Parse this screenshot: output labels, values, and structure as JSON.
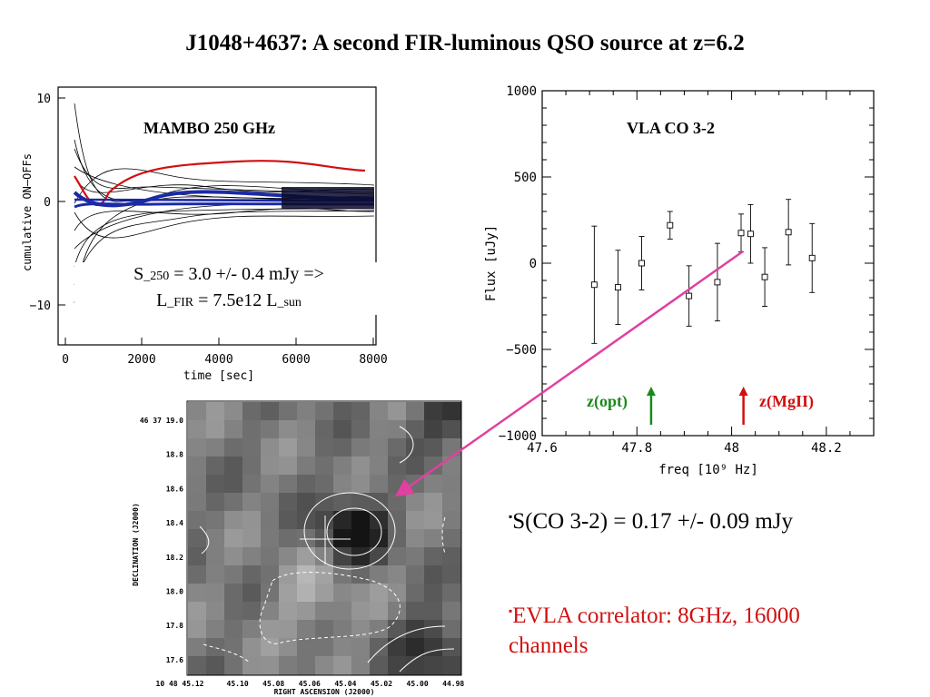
{
  "title": "J1048+4637: A second FIR-luminous QSO source  at z=6.2",
  "mambo": {
    "label": "MAMBO 250 GHz",
    "ylabel": "cumulative ON–OFFs",
    "xlabel": "time [sec]",
    "xticks": [
      "0",
      "2000",
      "4000",
      "6000",
      "8000"
    ],
    "yticks": [
      "10",
      "0",
      "−10"
    ],
    "s250_line1_a": "S",
    "s250_line1_sub": "_250",
    "s250_line1_b": " = 3.0 +/- 0.4 mJy =>",
    "s250_line2_a": "L",
    "s250_line2_sub": "_FIR",
    "s250_line2_b": " = 7.5e12 L",
    "s250_line2_sub2": "_sun"
  },
  "chart_data": {
    "type": "scatter",
    "title": "VLA CO 3-2",
    "xlabel": "freq [10⁹ Hz]",
    "ylabel": "Flux [uJy]",
    "xlim": [
      47.6,
      48.3
    ],
    "ylim": [
      -1000,
      1000
    ],
    "xticks": [
      "47.6",
      "47.8",
      "48",
      "48.2"
    ],
    "yticks": [
      "1000",
      "500",
      "0",
      "−500",
      "−1000"
    ],
    "series": [
      {
        "x": [
          47.71,
          47.76,
          47.81,
          47.87,
          47.91,
          47.97,
          48.02,
          48.04,
          48.07,
          48.12,
          48.17
        ],
        "y": [
          -125,
          -140,
          0,
          220,
          -190,
          -110,
          175,
          170,
          -80,
          180,
          30
        ],
        "err": [
          340,
          215,
          155,
          80,
          175,
          225,
          110,
          170,
          170,
          190,
          200
        ]
      }
    ],
    "markers": [
      {
        "label": "z(opt)",
        "x": 47.83,
        "color": "#1a8a1a"
      },
      {
        "label": "z(MgII)",
        "x": 48.025,
        "color": "#d01010"
      }
    ]
  },
  "map": {
    "ylabel": "DECLINATION (J2000)",
    "xlabel": "RIGHT ASCENSION (J2000)",
    "yticks": [
      "46 37 19.0",
      "18.8",
      "18.6",
      "18.4",
      "18.2",
      "18.0",
      "17.8",
      "17.6"
    ],
    "xticks": [
      "10 48 45.12",
      "45.10",
      "45.08",
      "45.06",
      "45.04",
      "45.02",
      "45.00",
      "44.98"
    ]
  },
  "bullets": {
    "marker": "▪",
    "b1": "S(CO 3-2) = 0.17 +/- 0.09 mJy",
    "b2": "EVLA correlator: 8GHz, 16000 channels"
  },
  "colors": {
    "connector": "#e040a0",
    "opt": "#1a8a1a",
    "mgii": "#d01010",
    "b2": "#d01010"
  }
}
